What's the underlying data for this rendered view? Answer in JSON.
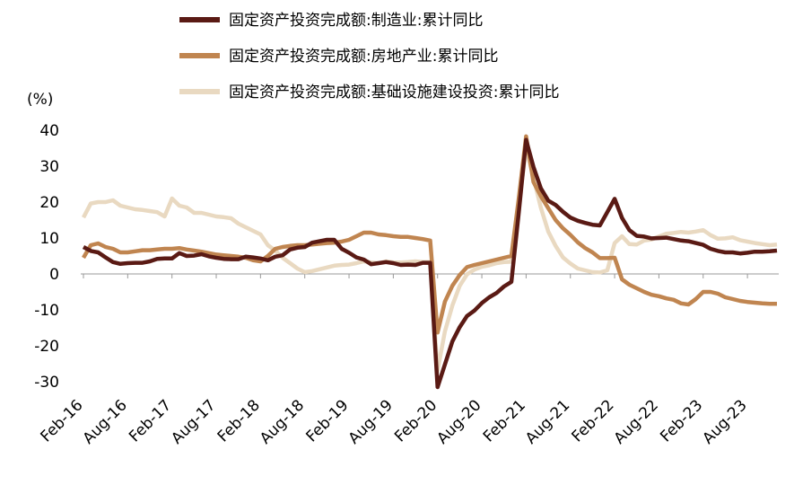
{
  "chart_data": {
    "type": "line",
    "y_label": "(%)",
    "categories": [
      "Feb-16",
      null,
      null,
      null,
      null,
      null,
      "Aug-16",
      null,
      null,
      null,
      null,
      null,
      "Feb-17",
      null,
      null,
      null,
      null,
      null,
      "Aug-17",
      null,
      null,
      null,
      null,
      null,
      "Feb-18",
      null,
      null,
      null,
      null,
      null,
      "Aug-18",
      null,
      null,
      null,
      null,
      null,
      "Feb-19",
      null,
      null,
      null,
      null,
      null,
      "Aug-19",
      null,
      null,
      null,
      null,
      null,
      "Feb-20",
      null,
      null,
      null,
      null,
      null,
      "Aug-20",
      null,
      null,
      null,
      null,
      null,
      "Feb-21",
      null,
      null,
      null,
      null,
      null,
      "Aug-21",
      null,
      null,
      null,
      null,
      null,
      "Feb-22",
      null,
      null,
      null,
      null,
      null,
      "Aug-22",
      null,
      null,
      null,
      null,
      null,
      "Feb-23",
      null,
      null,
      null,
      null,
      null,
      "Aug-23",
      null,
      null,
      null,
      null
    ],
    "series": [
      {
        "name": "固定资产投资完成额:制造业:累计同比",
        "color": "#5a1a14",
        "values": [
          7.5,
          6.4,
          6.0,
          4.6,
          3.3,
          2.8,
          3.0,
          3.1,
          3.1,
          3.5,
          4.2,
          4.3,
          4.3,
          5.8,
          5.0,
          5.1,
          5.5,
          4.9,
          4.5,
          4.2,
          4.1,
          4.1,
          4.8,
          4.6,
          4.3,
          3.8,
          4.8,
          5.2,
          6.8,
          7.3,
          7.5,
          8.7,
          9.1,
          9.5,
          9.5,
          7.0,
          5.9,
          4.6,
          4.0,
          2.7,
          3.0,
          3.3,
          3.0,
          2.5,
          2.6,
          2.5,
          3.1,
          3.1,
          -31.5,
          -25.2,
          -18.8,
          -14.8,
          -11.7,
          -10.2,
          -8.1,
          -6.5,
          -5.3,
          -3.5,
          -2.2,
          17,
          37.3,
          29.8,
          23.8,
          20.4,
          19.2,
          17.3,
          15.7,
          14.8,
          14.2,
          13.7,
          13.5,
          17.2,
          20.9,
          15.6,
          12.2,
          10.6,
          10.4,
          9.9,
          10.0,
          10.1,
          9.7,
          9.3,
          9.1,
          8.6,
          8.1,
          7.0,
          6.4,
          6.0,
          6.0,
          5.7,
          5.9,
          6.2,
          6.2,
          6.3,
          6.5
        ]
      },
      {
        "name": "固定资产投资完成额:房地产业:累计同比",
        "color": "#c08550",
        "values": [
          4.5,
          8.0,
          8.5,
          7.5,
          7.0,
          6.0,
          6.0,
          6.3,
          6.6,
          6.6,
          6.8,
          7.0,
          7.0,
          7.2,
          6.8,
          6.5,
          6.2,
          5.8,
          5.4,
          5.2,
          5.0,
          4.8,
          4.5,
          3.8,
          3.5,
          5.0,
          7.0,
          7.5,
          7.8,
          8.0,
          8.0,
          8.2,
          8.4,
          8.6,
          8.7,
          9.0,
          9.5,
          10.5,
          11.5,
          11.5,
          11.0,
          10.8,
          10.5,
          10.3,
          10.3,
          10.0,
          9.7,
          9.3,
          -16.3,
          -7.7,
          -3.3,
          -0.3,
          1.9,
          2.5,
          3.0,
          3.5,
          4.0,
          4.5,
          5.0,
          21,
          38.3,
          25.6,
          21.6,
          18.3,
          15.0,
          12.7,
          10.9,
          8.8,
          7.2,
          6.0,
          4.4,
          4.4,
          4.5,
          -1.5,
          -3.0,
          -4.0,
          -5.0,
          -5.8,
          -6.2,
          -6.8,
          -7.2,
          -8.2,
          -8.5,
          -7.0,
          -5.0,
          -5.0,
          -5.5,
          -6.5,
          -7.0,
          -7.5,
          -7.8,
          -8.0,
          -8.2,
          -8.3,
          -8.3
        ]
      },
      {
        "name": "固定资产投资完成额:基础设施建设投资:累计同比",
        "color": "#e9d9c1",
        "values": [
          15.7,
          19.6,
          20,
          20,
          20.5,
          19,
          18.5,
          18,
          17.8,
          17.5,
          17.2,
          16,
          21,
          19,
          18.5,
          17,
          17,
          16.5,
          16,
          15.8,
          15.5,
          14,
          13,
          12,
          11,
          8,
          6.5,
          4.5,
          3,
          1.5,
          0.5,
          0.8,
          1.3,
          1.8,
          2.3,
          2.5,
          2.6,
          3,
          3.5,
          3.2,
          3,
          3.5,
          3.2,
          3.2,
          3.3,
          3.5,
          3.3,
          3.3,
          -26.9,
          -16,
          -8.8,
          -3.3,
          -0.1,
          1.2,
          2,
          2.4,
          3,
          3.3,
          3.4,
          19,
          35,
          26.8,
          18.4,
          11.8,
          7.8,
          4.6,
          2.9,
          1.5,
          1,
          0.5,
          0.4,
          1,
          8.6,
          10.5,
          8.3,
          8.2,
          9.3,
          9.6,
          10.4,
          11.2,
          11.4,
          11.7,
          11.5,
          11.8,
          12.2,
          10.8,
          9.8,
          9.9,
          10.2,
          9.4,
          9,
          8.6,
          8.3,
          8,
          8.2
        ]
      }
    ],
    "ylim": [
      -30,
      40
    ],
    "yticks": [
      -30,
      -20,
      -10,
      0,
      10,
      20,
      30,
      40
    ]
  }
}
